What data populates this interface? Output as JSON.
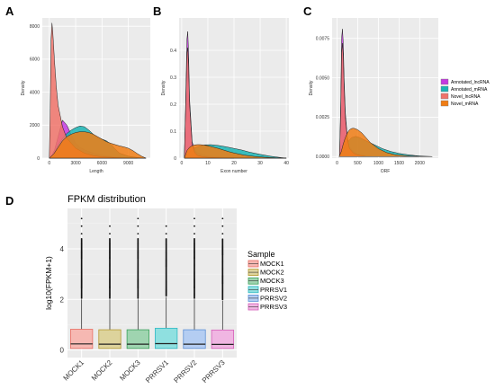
{
  "panel_letters": [
    "A",
    "B",
    "C",
    "D"
  ],
  "chart_data": [
    {
      "panel": "A",
      "type": "area",
      "xlabel": "Length",
      "ylabel": "Density",
      "xlim": [
        -800,
        11500
      ],
      "ylim": [
        0,
        8500
      ],
      "xticks": [
        0,
        3000,
        6000,
        9000
      ],
      "yticks": [
        0,
        2000,
        4000,
        6000,
        8000
      ],
      "series": [
        {
          "name": "Annotated_lncRNA",
          "color": "#c43ae0",
          "x": [
            0,
            300,
            600,
            1000,
            1500,
            2000,
            2500,
            3000,
            3500,
            4000,
            5000,
            6000,
            7000,
            8000,
            9000,
            10000,
            11000
          ],
          "y": [
            0,
            200,
            500,
            1300,
            2300,
            2000,
            1400,
            900,
            650,
            500,
            300,
            180,
            100,
            60,
            30,
            10,
            0
          ]
        },
        {
          "name": "Annotated_mRNA",
          "color": "#1ab4b4",
          "x": [
            0,
            300,
            600,
            1000,
            1500,
            2000,
            2500,
            3000,
            3500,
            4000,
            4500,
            5000,
            5500,
            6000,
            6500,
            7000,
            7500,
            8000,
            9000,
            10000,
            11000
          ],
          "y": [
            0,
            100,
            350,
            800,
            1200,
            1500,
            1700,
            1850,
            1950,
            1900,
            1700,
            1450,
            1250,
            1150,
            1050,
            850,
            550,
            300,
            120,
            40,
            0
          ]
        },
        {
          "name": "Novel_lncRNA",
          "color": "#f0736a",
          "x": [
            0,
            100,
            200,
            300,
            400,
            600,
            800,
            1000,
            1500,
            2000,
            3000,
            4000,
            5000,
            6000,
            8000,
            10000
          ],
          "y": [
            0,
            3000,
            7200,
            8200,
            7600,
            5800,
            4300,
            3200,
            1900,
            1200,
            600,
            300,
            150,
            80,
            20,
            0
          ]
        },
        {
          "name": "Novel_mRNA",
          "color": "#f07d14",
          "x": [
            0,
            500,
            1000,
            1500,
            2000,
            2500,
            3000,
            3500,
            4000,
            4500,
            5000,
            5500,
            6000,
            6500,
            7000,
            7500,
            8000,
            8500,
            9000,
            9500,
            10000,
            10500,
            11000
          ],
          "y": [
            0,
            250,
            650,
            1050,
            1300,
            1450,
            1550,
            1600,
            1600,
            1550,
            1450,
            1300,
            1150,
            1000,
            900,
            820,
            740,
            680,
            600,
            460,
            280,
            120,
            0
          ]
        }
      ]
    },
    {
      "panel": "B",
      "type": "area",
      "xlabel": "Exon number",
      "ylabel": "Density",
      "xlim": [
        -1,
        41
      ],
      "ylim": [
        0,
        0.52
      ],
      "xticks": [
        0,
        10,
        20,
        30,
        40
      ],
      "yticks": [
        0,
        0.1,
        0.2,
        0.3,
        0.4
      ],
      "series": [
        {
          "name": "Annotated_lncRNA",
          "color": "#c43ae0",
          "x": [
            1,
            1.5,
            2,
            2.3,
            2.6,
            3,
            4,
            5,
            6,
            8,
            10,
            15,
            20,
            30,
            40
          ],
          "y": [
            0,
            0.2,
            0.44,
            0.47,
            0.4,
            0.22,
            0.06,
            0.03,
            0.02,
            0.012,
            0.008,
            0.004,
            0.002,
            0.001,
            0
          ]
        },
        {
          "name": "Annotated_mRNA",
          "color": "#1ab4b4",
          "x": [
            1,
            3,
            5,
            7,
            9,
            11,
            14,
            17,
            20,
            23,
            26,
            30,
            34,
            38,
            40
          ],
          "y": [
            0,
            0.022,
            0.038,
            0.045,
            0.049,
            0.05,
            0.047,
            0.042,
            0.036,
            0.03,
            0.022,
            0.014,
            0.007,
            0.002,
            0
          ]
        },
        {
          "name": "Novel_lncRNA",
          "color": "#f0736a",
          "x": [
            1,
            1.5,
            2,
            2.3,
            2.6,
            3,
            4,
            5,
            6,
            8,
            10,
            15,
            20
          ],
          "y": [
            0,
            0.18,
            0.39,
            0.41,
            0.35,
            0.2,
            0.05,
            0.02,
            0.01,
            0.005,
            0.003,
            0.001,
            0
          ]
        },
        {
          "name": "Novel_mRNA",
          "color": "#f07d14",
          "x": [
            1,
            2,
            3,
            4,
            5,
            6,
            7,
            8,
            10,
            12,
            14,
            16,
            18,
            20,
            24,
            28,
            32,
            36,
            40
          ],
          "y": [
            0,
            0.028,
            0.04,
            0.046,
            0.049,
            0.05,
            0.05,
            0.049,
            0.046,
            0.041,
            0.036,
            0.03,
            0.024,
            0.019,
            0.011,
            0.006,
            0.003,
            0.001,
            0
          ]
        }
      ]
    },
    {
      "panel": "C",
      "type": "area",
      "xlabel": "ORF",
      "ylabel": "Density",
      "xlim": [
        -120,
        2450
      ],
      "ylim": [
        -0.0001,
        0.0088
      ],
      "xticks": [
        0,
        500,
        1000,
        1500,
        2000
      ],
      "xtick_labels": [
        "0",
        "500",
        "1000",
        "1500",
        "2000"
      ],
      "yticks": [
        0,
        0.0025,
        0.005,
        0.0075
      ],
      "ytick_labels": [
        "0.0000",
        "0.0025",
        "0.0050",
        "0.0075"
      ],
      "series": [
        {
          "name": "Annotated_lncRNA",
          "color": "#c43ae0",
          "x": [
            60,
            90,
            110,
            130,
            150,
            170,
            200,
            250,
            300,
            400,
            500,
            700,
            900
          ],
          "y": [
            0,
            0.0035,
            0.0075,
            0.0081,
            0.0072,
            0.005,
            0.0028,
            0.0012,
            0.0006,
            0.0003,
            0.00015,
            5e-05,
            0
          ]
        },
        {
          "name": "Annotated_mRNA",
          "color": "#1ab4b4",
          "x": [
            50,
            150,
            250,
            350,
            450,
            550,
            700,
            900,
            1100,
            1300,
            1500,
            1700,
            1900,
            2100,
            2300
          ],
          "y": [
            0,
            0.0004,
            0.0009,
            0.0012,
            0.00128,
            0.0012,
            0.001,
            0.00075,
            0.0005,
            0.00032,
            0.0002,
            0.00012,
            6e-05,
            2e-05,
            0
          ]
        },
        {
          "name": "Novel_lncRNA",
          "color": "#f0736a",
          "x": [
            60,
            90,
            110,
            130,
            150,
            170,
            200,
            250,
            300,
            400,
            500,
            700
          ],
          "y": [
            0,
            0.003,
            0.0066,
            0.0072,
            0.0064,
            0.0045,
            0.0025,
            0.0011,
            0.0005,
            0.0002,
            0.0001,
            0
          ]
        },
        {
          "name": "Novel_mRNA",
          "color": "#f07d14",
          "x": [
            50,
            100,
            150,
            200,
            250,
            300,
            350,
            400,
            450,
            500,
            600,
            700,
            800,
            1000,
            1200,
            1400,
            1700,
            2000,
            2300
          ],
          "y": [
            0,
            0.0003,
            0.0008,
            0.0012,
            0.0015,
            0.0017,
            0.00178,
            0.0018,
            0.00176,
            0.0017,
            0.0015,
            0.0012,
            0.0009,
            0.0005,
            0.00025,
            0.00012,
            4e-05,
            1e-05,
            0
          ]
        }
      ]
    },
    {
      "panel": "D",
      "type": "box",
      "title": "FPKM distribution",
      "ylabel": "log10(FPKM+1)",
      "ylim": [
        -0.3,
        5.6
      ],
      "yticks": [
        0,
        2,
        4
      ],
      "categories": [
        "MOCK1",
        "MOCK2",
        "MOCK3",
        "PRRSV1",
        "PRRSV2",
        "PRRSV3"
      ],
      "fill_colors": [
        "#f6b8b2",
        "#ddd39c",
        "#9fd4b0",
        "#8fe0e0",
        "#b4cdf2",
        "#f0b6e2"
      ],
      "border_colors": [
        "#e96d63",
        "#b59a30",
        "#3aa05a",
        "#2fb8c3",
        "#5c8fd6",
        "#d65fb9"
      ],
      "boxes": [
        {
          "q1": 0.06,
          "median": 0.24,
          "q3": 0.82,
          "upper_whisker": 2.0,
          "max_outlier": 5.2
        },
        {
          "q1": 0.06,
          "median": 0.23,
          "q3": 0.8,
          "upper_whisker": 2.0,
          "max_outlier": 5.05
        },
        {
          "q1": 0.06,
          "median": 0.23,
          "q3": 0.8,
          "upper_whisker": 2.0,
          "max_outlier": 5.3
        },
        {
          "q1": 0.06,
          "median": 0.25,
          "q3": 0.86,
          "upper_whisker": 2.1,
          "max_outlier": 5.1
        },
        {
          "q1": 0.06,
          "median": 0.23,
          "q3": 0.8,
          "upper_whisker": 2.0,
          "max_outlier": 5.3
        },
        {
          "q1": 0.06,
          "median": 0.22,
          "q3": 0.79,
          "upper_whisker": 1.95,
          "max_outlier": 5.2
        }
      ],
      "legend": {
        "title": "Sample",
        "entries": [
          "MOCK1",
          "MOCK2",
          "MOCK3",
          "PRRSV1",
          "PRRSV2",
          "PRRSV3"
        ],
        "position": "right"
      }
    }
  ],
  "density_legend": {
    "entries": [
      "Annotated_lncRNA",
      "Annotated_mRNA",
      "Novel_lncRNA",
      "Novel_mRNA"
    ],
    "colors": [
      "#c43ae0",
      "#1ab4b4",
      "#f0736a",
      "#f07d14"
    ],
    "position": "right"
  }
}
